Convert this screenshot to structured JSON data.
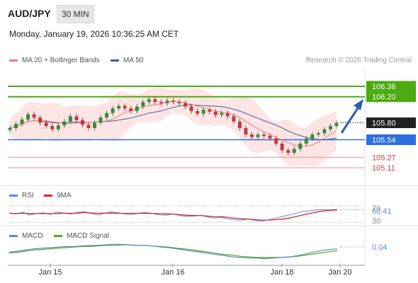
{
  "header": {
    "symbol": "AUD/JPY",
    "timeframe": "30 MIN",
    "datetime": "Monday, January 19, 2026 10:36:25 AM CET"
  },
  "legend": {
    "ma20_label": "MA 20 + Bollinger Bands",
    "ma50_label": "MA 50",
    "research": "Research © 2026 Trading Central",
    "rsi_label": "RSI",
    "rsi_ma_label": "9MA",
    "macd_label": "MACD",
    "macd_signal_label": "MACD Signal"
  },
  "colors": {
    "ma20": "#f07b7b",
    "ma50": "#3a5e9e",
    "bollinger_fill": "#fcdcdc",
    "resistance": "#4caa12",
    "pivot": "#2b6fe0",
    "support": "#f4a3a3",
    "candle_up": "#3a8a3a",
    "candle_down": "#c33a3a",
    "current": "#222222",
    "rsi": "#5b86d6",
    "rsi_ma": "#d42a2a",
    "macd": "#5b86d6",
    "macd_signal": "#5aa616",
    "arrow": "#2b5fa8"
  },
  "chart_data": {
    "type": "candlestick",
    "price_levels": {
      "resistance_2": 106.36,
      "resistance_1": 106.2,
      "current": 105.8,
      "pivot": 105.54,
      "support_1": 105.27,
      "support_2": 105.11
    },
    "price_labels": [
      "106.36",
      "106.20",
      "105.80",
      "105.54",
      "105.27",
      "105.11"
    ],
    "x_ticks": [
      "Jan 15",
      "Jan 16",
      "Jan 18",
      "Jan 20"
    ],
    "close_series": [
      105.72,
      105.78,
      105.85,
      105.93,
      105.88,
      105.8,
      105.75,
      105.7,
      105.76,
      105.82,
      105.9,
      105.84,
      105.77,
      105.72,
      105.8,
      105.88,
      105.95,
      106.02,
      106.06,
      106.02,
      105.98,
      106.05,
      106.12,
      106.16,
      106.12,
      106.1,
      106.14,
      106.12,
      106.1,
      106.05,
      105.98,
      105.94,
      106.0,
      105.97,
      105.92,
      105.95,
      105.9,
      105.82,
      105.72,
      105.62,
      105.58,
      105.62,
      105.6,
      105.56,
      105.48,
      105.38,
      105.34,
      105.4,
      105.48,
      105.56,
      105.62,
      105.64,
      105.7,
      105.75,
      105.8
    ],
    "rsi": {
      "current": 60.41,
      "levels": [
        70,
        30
      ],
      "level_labels": [
        "70",
        "60.41",
        "30"
      ],
      "series": [
        52,
        50,
        54,
        48,
        51,
        53,
        49,
        55,
        52,
        50,
        54,
        56,
        51,
        48,
        52,
        55,
        53,
        50,
        49,
        52,
        54,
        51,
        48,
        47,
        50,
        46,
        44,
        45,
        47,
        43,
        40,
        42,
        38,
        36,
        35,
        38,
        34,
        33,
        36,
        40,
        44,
        48,
        52,
        56,
        58,
        60,
        61,
        60,
        61
      ]
    },
    "macd": {
      "current": 0.04,
      "current_label": "0.04",
      "macd_series": [
        -0.02,
        0.0,
        0.02,
        0.04,
        0.05,
        0.06,
        0.07,
        0.08,
        0.08,
        0.09,
        0.1,
        0.1,
        0.11,
        0.12,
        0.12,
        0.11,
        0.1,
        0.1,
        0.09,
        0.07,
        0.06,
        0.04,
        0.02,
        0.0,
        -0.02,
        -0.04,
        -0.06,
        -0.08,
        -0.1,
        -0.11,
        -0.12,
        -0.12,
        -0.13,
        -0.12,
        -0.11,
        -0.1,
        -0.08,
        -0.05,
        -0.02,
        0.01,
        0.03,
        0.04
      ],
      "signal_series": [
        -0.03,
        -0.02,
        0.0,
        0.02,
        0.03,
        0.04,
        0.05,
        0.06,
        0.07,
        0.08,
        0.08,
        0.09,
        0.1,
        0.1,
        0.11,
        0.11,
        0.1,
        0.1,
        0.09,
        0.08,
        0.07,
        0.05,
        0.04,
        0.02,
        0.0,
        -0.02,
        -0.04,
        -0.06,
        -0.07,
        -0.09,
        -0.1,
        -0.11,
        -0.11,
        -0.11,
        -0.11,
        -0.1,
        -0.09,
        -0.07,
        -0.05,
        -0.03,
        -0.01,
        0.01
      ]
    }
  }
}
